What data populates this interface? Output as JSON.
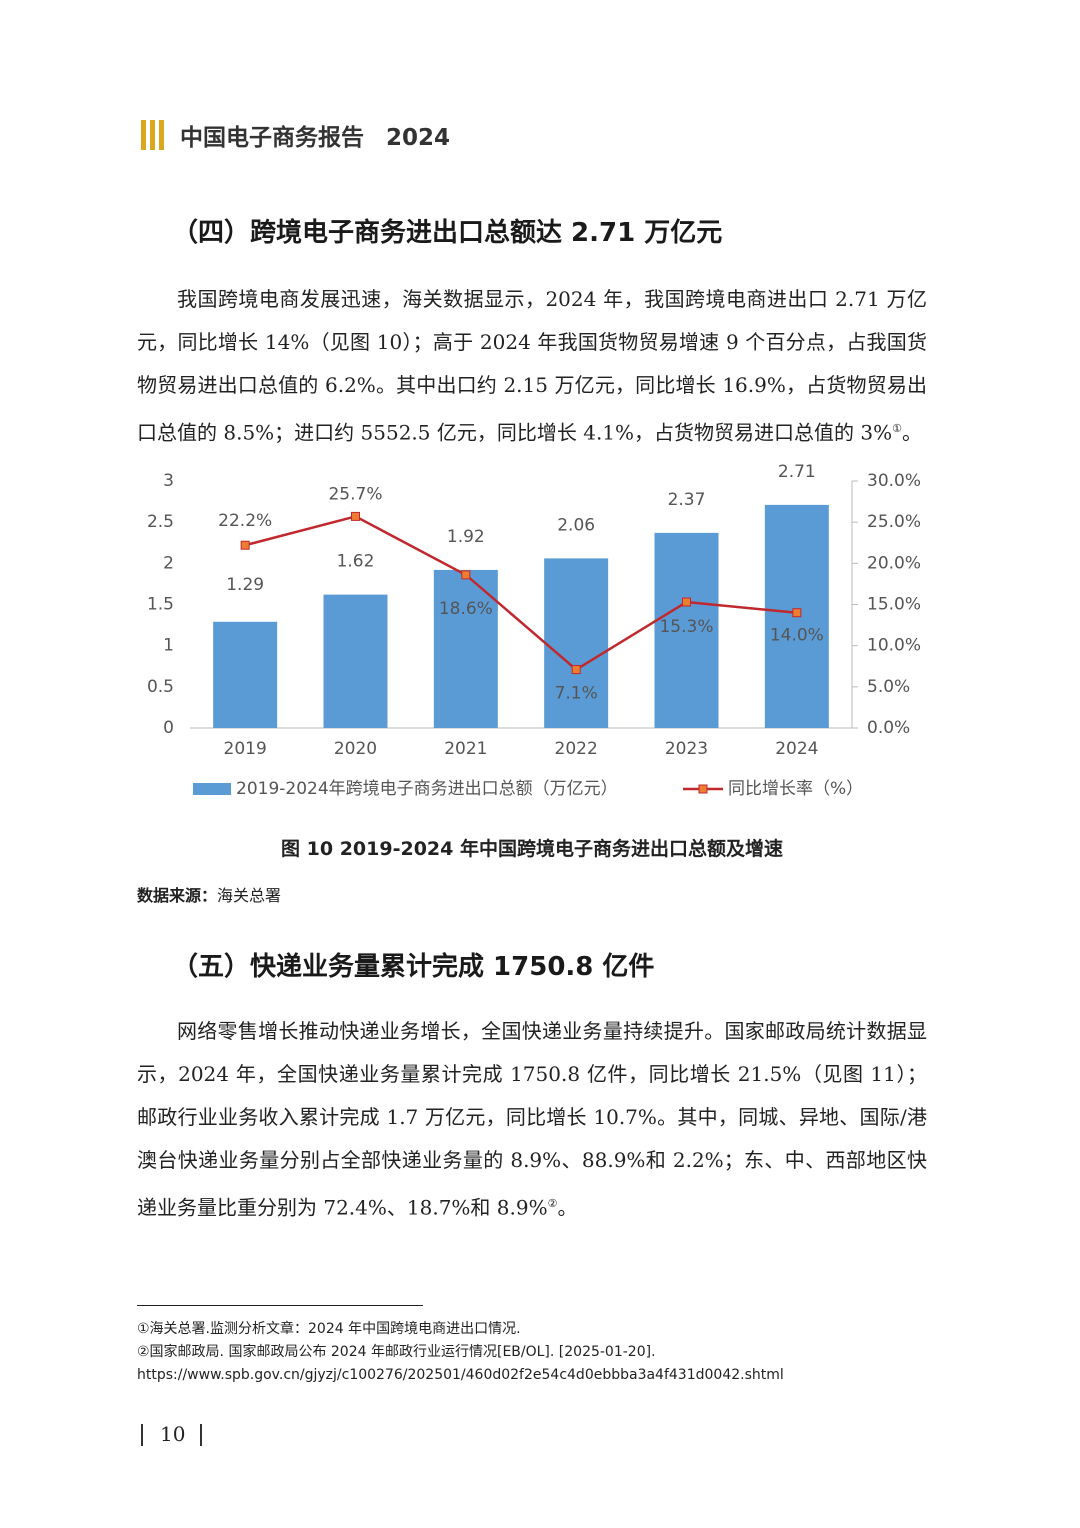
{
  "header": {
    "title": "中国电子商务报告",
    "year": "2024"
  },
  "sections": [
    {
      "heading": "（四）跨境电子商务进出口总额达 2.71 万亿元",
      "paragraph": {
        "text": "我国跨境电商发展迅速，海关数据显示，2024 年，我国跨境电商进出口 2.71 万亿元，同比增长 14%（见图 10）；高于 2024 年我国货物贸易增速 9 个百分点，占我国货物贸易进出口总值的 6.2%。其中出口约 2.15 万亿元，同比增长 16.9%，占货物贸易出口总值的 8.5%；进口约 5552.5 亿元，同比增长 4.1%，占货物贸易进口总值的 3%",
        "note": "①",
        "tail": "。"
      }
    },
    {
      "heading": "（五）快递业务量累计完成 1750.8 亿件",
      "paragraph": {
        "text": "网络零售增长推动快递业务增长，全国快递业务量持续提升。国家邮政局统计数据显示，2024 年，全国快递业务量累计完成 1750.8 亿件，同比增长 21.5%（见图 11）；邮政行业业务收入累计完成 1.7 万亿元，同比增长 10.7%。其中，同城、异地、国际/港澳台快递业务量分别占全部快递业务量的 8.9%、88.9%和 2.2%；东、中、西部地区快递业务量比重分别为 72.4%、18.7%和 8.9%",
        "note": "②",
        "tail": "。"
      }
    }
  ],
  "chart_data": {
    "type": "bar",
    "categories": [
      "2019",
      "2020",
      "2021",
      "2022",
      "2023",
      "2024"
    ],
    "series": [
      {
        "name": "2019-2024年跨境电子商务进出口总额（万亿元）",
        "type": "bar",
        "color": "#5b9bd5",
        "values": [
          1.29,
          1.62,
          1.92,
          2.06,
          2.37,
          2.71
        ]
      },
      {
        "name": "同比增长率（%）",
        "type": "line",
        "axis": "y2",
        "color": "#c0282d",
        "marker_color": "#ed7d31",
        "values": [
          22.2,
          25.7,
          18.6,
          7.1,
          15.3,
          14.0
        ],
        "value_labels": [
          "22.2%",
          "25.7%",
          "18.6%",
          "7.1%",
          "15.3%",
          "14.0%"
        ]
      }
    ],
    "ylim": [
      0,
      3
    ],
    "yticks": [
      0,
      0.5,
      1,
      1.5,
      2,
      2.5,
      3
    ],
    "y2lim": [
      0,
      30
    ],
    "y2ticks": [
      {
        "value": 0,
        "label": "0.0%"
      },
      {
        "value": 5,
        "label": "5.0%"
      },
      {
        "value": 10,
        "label": "10.0%"
      },
      {
        "value": 15,
        "label": "15.0%"
      },
      {
        "value": 20,
        "label": "20.0%"
      },
      {
        "value": 25,
        "label": "25.0%"
      },
      {
        "value": 30,
        "label": "30.0%"
      }
    ],
    "legend": "bottom"
  },
  "figure": {
    "caption": "图 10 2019-2024 年中国跨境电子商务进出口总额及增速",
    "source_label": "数据来源：",
    "source": "海关总署"
  },
  "footnotes": [
    "①海关总署.监测分析文章：2024 年中国跨境电商进出口情况.",
    "②国家邮政局. 国家邮政局公布 2024 年邮政行业运行情况[EB/OL]. [2025-01-20].",
    "https://www.spb.gov.cn/gjyzj/c100276/202501/460d02f2e54c4d0ebbba3a4f431d0042.shtml"
  ],
  "page_number": "10"
}
